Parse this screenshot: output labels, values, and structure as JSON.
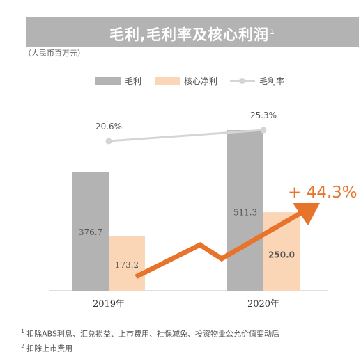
{
  "title": "毛利,毛利率及核心利润",
  "title_note_mark": "1",
  "unit": "（人民币百万元）",
  "legend": {
    "gross_profit": "毛利",
    "core_net_profit": "核心净利",
    "gross_margin": "毛利率"
  },
  "growth_label": "+ 44.3%",
  "footnotes": [
    {
      "mark": "1",
      "text": "扣除ABS利息、汇兑损益、上市费用、社保减免、投资物业公允价值变动后"
    },
    {
      "mark": "2",
      "text": "扣除上市费用"
    }
  ],
  "colors": {
    "gross_profit": "#b3b3b3",
    "core_net_profit": "#fbd6b6",
    "gross_margin": "#d5d5d5",
    "growth_arrow": "#e8732a"
  },
  "chart_data": {
    "type": "bar",
    "categories": [
      "2019年",
      "2020年"
    ],
    "series": [
      {
        "name": "毛利",
        "values": [
          376.7,
          511.3
        ],
        "labels": [
          "376.7",
          "511.3"
        ]
      },
      {
        "name": "核心净利",
        "values": [
          173.2,
          250.0
        ],
        "labels": [
          "173.2",
          "250.0"
        ]
      },
      {
        "name": "毛利率",
        "type": "line",
        "values": [
          20.6,
          25.3
        ],
        "labels": [
          "20.6%",
          "25.3%"
        ]
      }
    ],
    "growth": "+ 44.3%",
    "legend_position": "top"
  }
}
